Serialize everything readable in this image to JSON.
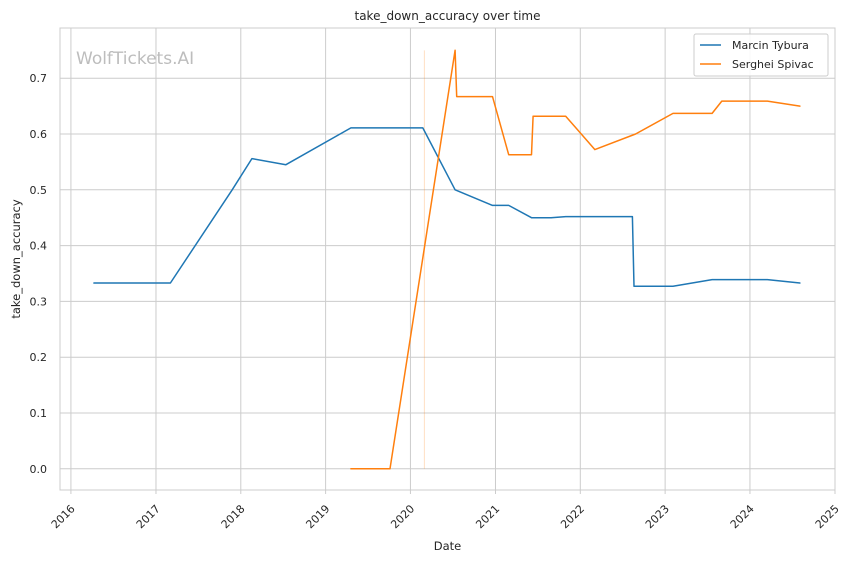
{
  "chart_data": {
    "type": "line",
    "title": "take_down_accuracy over time",
    "xlabel": "Date",
    "ylabel": "take_down_accuracy",
    "watermark": "WolfTickets.AI",
    "xlim": [
      "2015-11-15",
      "2025-01-01"
    ],
    "ylim": [
      -0.038,
      0.79
    ],
    "x_ticks": [
      "2016-01-01",
      "2017-01-01",
      "2018-01-01",
      "2019-01-01",
      "2020-01-01",
      "2021-01-01",
      "2022-01-01",
      "2023-01-01",
      "2024-01-01",
      "2025-01-01"
    ],
    "x_tick_labels": [
      "2016",
      "2017",
      "2018",
      "2019",
      "2020",
      "2021",
      "2022",
      "2023",
      "2024",
      "2025"
    ],
    "y_ticks": [
      0.0,
      0.1,
      0.2,
      0.3,
      0.4,
      0.5,
      0.6,
      0.7
    ],
    "y_tick_labels": [
      "0.0",
      "0.1",
      "0.2",
      "0.3",
      "0.4",
      "0.5",
      "0.6",
      "0.7"
    ],
    "grid": true,
    "legend_position": "top-right",
    "series": [
      {
        "name": "Marcin Tybura",
        "color": "#1f77b4",
        "points": [
          [
            "2016-04-09",
            0.333
          ],
          [
            "2017-03-04",
            0.333
          ],
          [
            "2017-11-25",
            0.5
          ],
          [
            "2018-02-18",
            0.556
          ],
          [
            "2018-07-14",
            0.545
          ],
          [
            "2019-04-20",
            0.611
          ],
          [
            "2020-02-23",
            0.611
          ],
          [
            "2020-07-11",
            0.5
          ],
          [
            "2020-12-19",
            0.472
          ],
          [
            "2021-02-27",
            0.472
          ],
          [
            "2021-06-05",
            0.45
          ],
          [
            "2021-08-28",
            0.45
          ],
          [
            "2021-10-30",
            0.452
          ],
          [
            "2022-08-13",
            0.452
          ],
          [
            "2022-08-20",
            0.327
          ],
          [
            "2023-02-04",
            0.327
          ],
          [
            "2023-07-22",
            0.339
          ],
          [
            "2024-03-16",
            0.339
          ],
          [
            "2024-08-03",
            0.333
          ]
        ]
      },
      {
        "name": "Serghei Spivac",
        "color": "#ff7f0e",
        "points": [
          [
            "2019-04-20",
            0.0
          ],
          [
            "2019-10-05",
            0.0
          ],
          [
            "2020-07-11",
            0.75
          ],
          [
            "2020-07-18",
            0.667
          ],
          [
            "2020-12-19",
            0.667
          ],
          [
            "2021-02-27",
            0.563
          ],
          [
            "2021-06-05",
            0.563
          ],
          [
            "2021-06-12",
            0.632
          ],
          [
            "2021-10-30",
            0.632
          ],
          [
            "2022-03-05",
            0.572
          ],
          [
            "2022-08-27",
            0.6
          ],
          [
            "2023-02-04",
            0.637
          ],
          [
            "2023-07-22",
            0.637
          ],
          [
            "2023-09-02",
            0.659
          ],
          [
            "2024-03-16",
            0.659
          ],
          [
            "2024-08-03",
            0.65
          ]
        ]
      }
    ],
    "annotations": [
      {
        "type": "vline",
        "x": "2020-03-01",
        "y_range": [
          0.0,
          0.75
        ],
        "color": "#ff7f0e"
      }
    ]
  }
}
